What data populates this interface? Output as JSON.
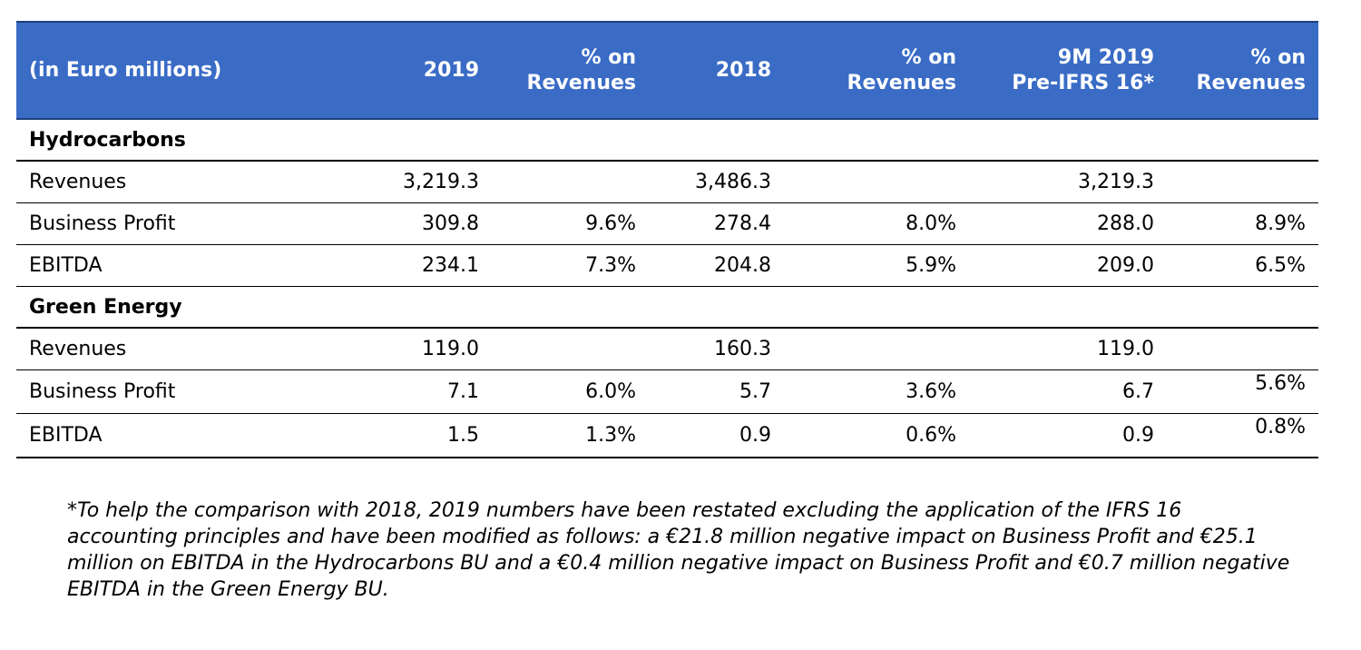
{
  "header": {
    "label": "(in Euro millions)",
    "col_2019": "2019",
    "col_pct_2019": [
      "% on",
      "Revenues"
    ],
    "col_2018": "2018",
    "col_pct_2018": [
      "% on",
      "Revenues"
    ],
    "col_9m": [
      "9M 2019",
      "Pre-IFRS 16*"
    ],
    "col_pct_9m": [
      "% on",
      "Revenues"
    ]
  },
  "sections": [
    {
      "title": "Hydrocarbons",
      "rows": [
        {
          "label": "Revenues",
          "v2019": "3,219.3",
          "p2019": "",
          "v2018": "3,486.3",
          "p2018": "",
          "v9m": "3,219.3",
          "p9m": ""
        },
        {
          "label": "Business Profit",
          "v2019": "309.8",
          "p2019": "9.6%",
          "v2018": "278.4",
          "p2018": "8.0%",
          "v9m": "288.0",
          "p9m": "8.9%"
        },
        {
          "label": "EBITDA",
          "v2019": "234.1",
          "p2019": "7.3%",
          "v2018": "204.8",
          "p2018": "5.9%",
          "v9m": "209.0",
          "p9m": "6.5%"
        }
      ]
    },
    {
      "title": "Green Energy",
      "rows": [
        {
          "label": "Revenues",
          "v2019": "119.0",
          "p2019": "",
          "v2018": "160.3",
          "p2018": "",
          "v9m": "119.0",
          "p9m": ""
        },
        {
          "label": "Business Profit",
          "v2019": "7.1",
          "p2019": "6.0%",
          "v2018": "5.7",
          "p2018": "3.6%",
          "v9m": "6.7",
          "p9m": "5.6%"
        },
        {
          "label": "EBITDA",
          "v2019": "1.5",
          "p2019": "1.3%",
          "v2018": "0.9",
          "p2018": "0.6%",
          "v9m": "0.9",
          "p9m": "0.8%"
        }
      ]
    }
  ],
  "footnote": "*To help the comparison with 2018, 2019 numbers have been restated excluding the application of the IFRS 16 accounting principles and have been modified as follows: a €21.8 million negative impact on Business Profit and €25.1 million on EBITDA in the Hydrocarbons BU and a €0.4 million negative impact on Business Profit and €0.7 million negative EBITDA in the Green Energy BU.",
  "colors": {
    "header_bg": "#3a6cc6",
    "header_text": "#ffffff",
    "rule": "#000000"
  }
}
